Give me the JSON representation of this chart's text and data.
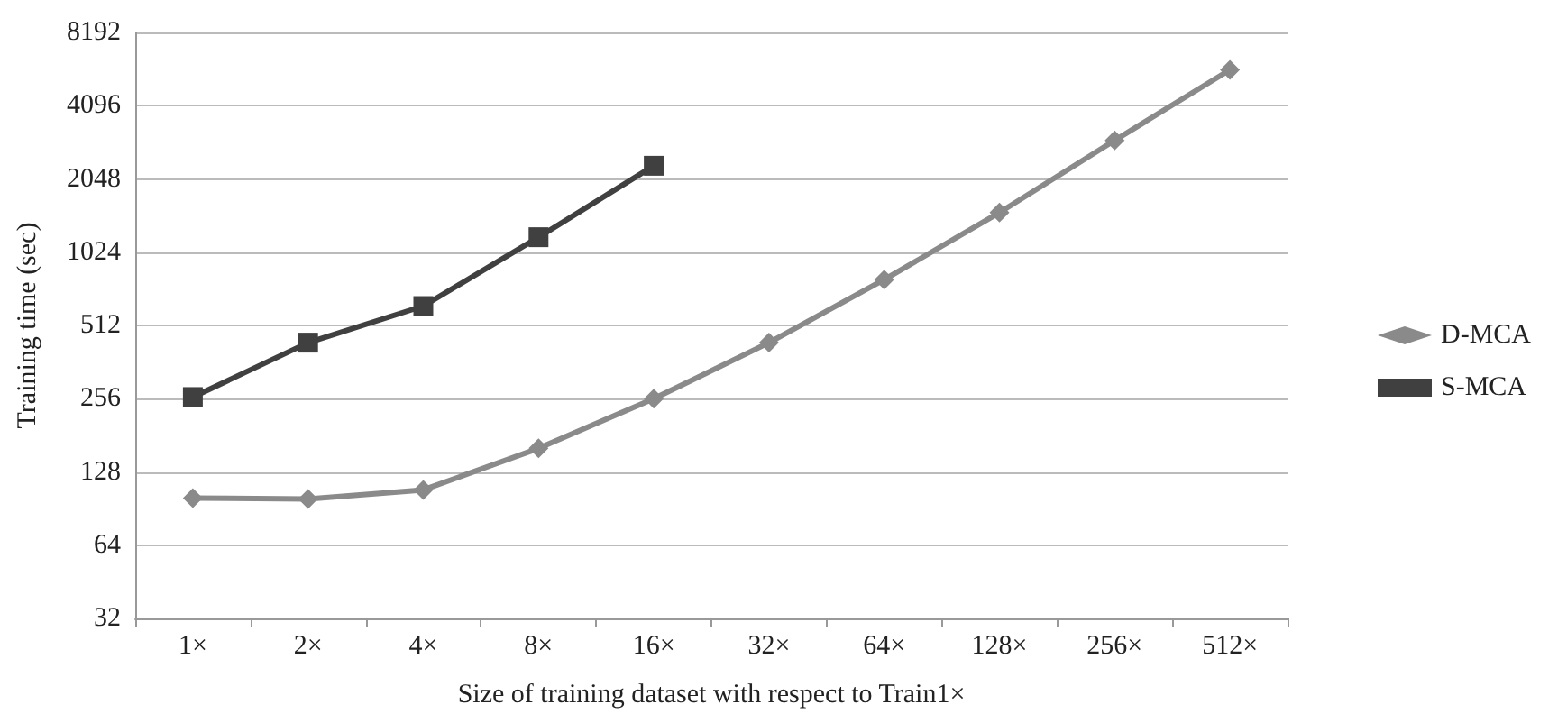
{
  "chart_data": {
    "type": "line",
    "xlabel": "Size of training dataset with respect to Train1×",
    "ylabel": "Training time (sec)",
    "categories": [
      "1×",
      "2×",
      "4×",
      "8×",
      "16×",
      "32×",
      "64×",
      "128×",
      "256×",
      "512×"
    ],
    "series": [
      {
        "name": "D-MCA",
        "color": "#8a8a8a",
        "marker": "diamond",
        "values": [
          100,
          99,
          108,
          160,
          256,
          435,
          790,
          1490,
          2950,
          5750
        ]
      },
      {
        "name": "S-MCA",
        "color": "#404040",
        "marker": "square",
        "values": [
          260,
          435,
          615,
          1180,
          2320,
          null,
          null,
          null,
          null,
          null
        ]
      }
    ],
    "log": "y",
    "ylim": [
      32,
      8192
    ],
    "yticks": [
      32,
      64,
      128,
      256,
      512,
      1024,
      2048,
      4096,
      8192
    ],
    "grid": "y",
    "legend": "right"
  }
}
